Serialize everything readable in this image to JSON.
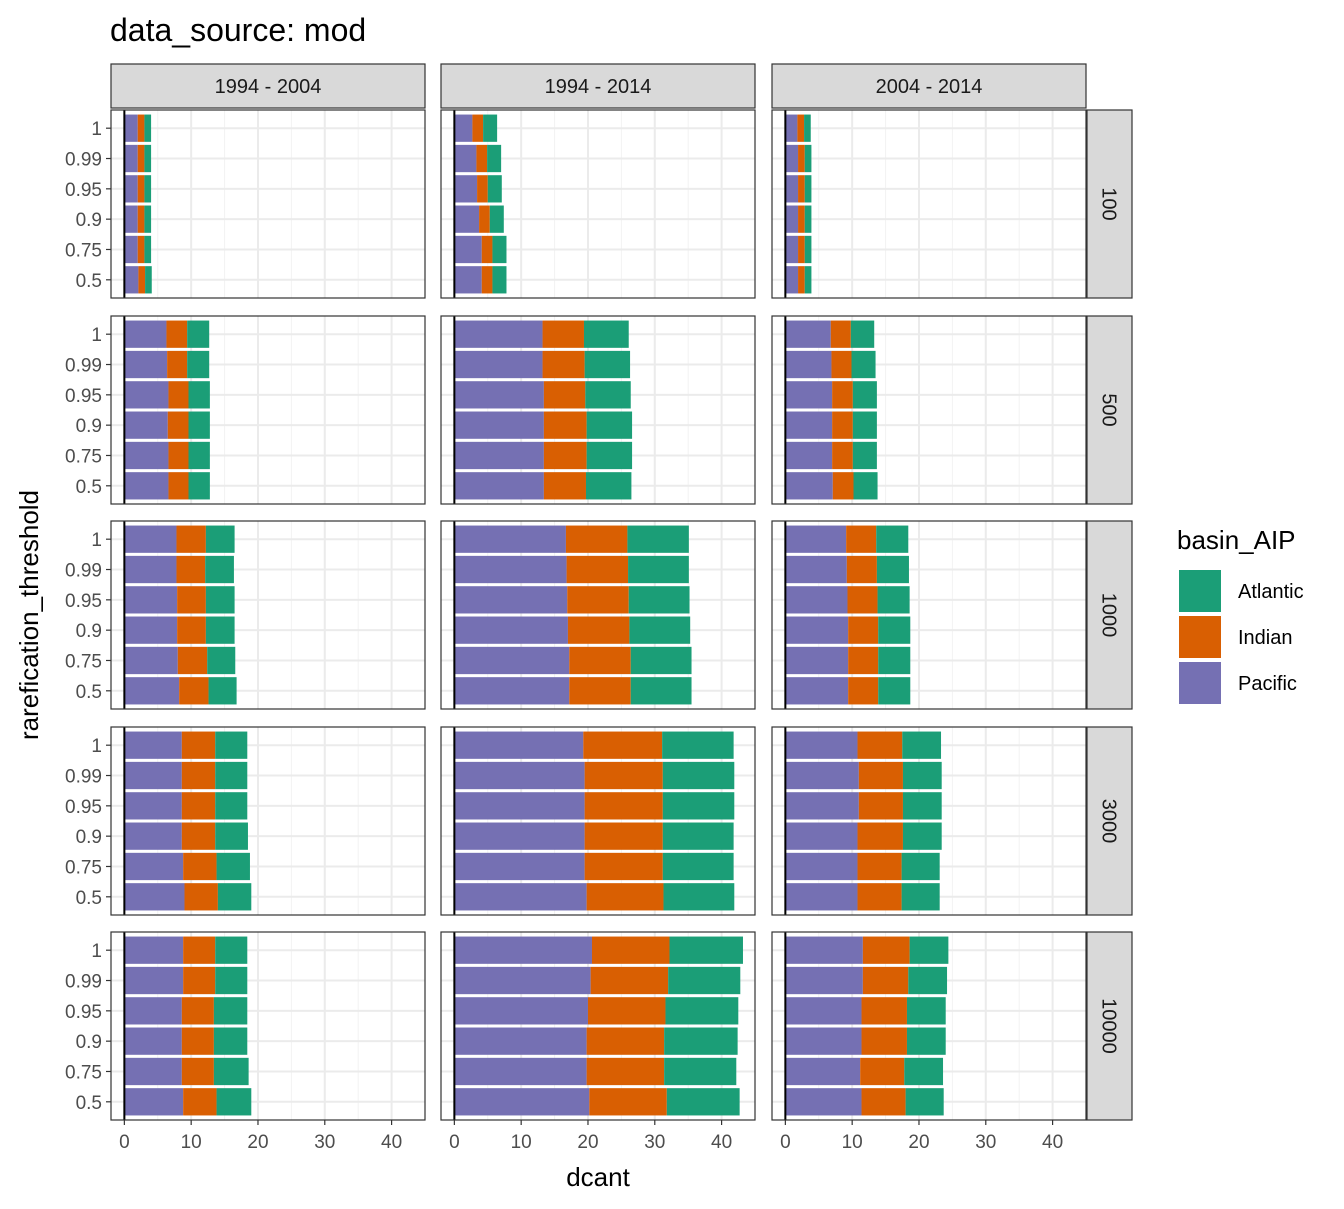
{
  "chart_data": {
    "type": "bar",
    "orientation": "horizontal",
    "stacked": true,
    "title": "data_source: mod",
    "xlabel": "dcant",
    "ylabel": "rarefication_threshold",
    "xlim": [
      -2,
      45
    ],
    "x_ticks": [
      "0",
      "10",
      "20",
      "30",
      "40"
    ],
    "categories": [
      "1",
      "0.99",
      "0.95",
      "0.9",
      "0.75",
      "0.5"
    ],
    "facet_columns": [
      "1994 - 2004",
      "1994 - 2014",
      "2004 - 2014"
    ],
    "facet_rows": [
      "100",
      "500",
      "1000",
      "3000",
      "10000"
    ],
    "grid": true,
    "legend": {
      "title": "basin_AIP",
      "position": "right",
      "entries": [
        {
          "name": "Atlantic",
          "color": "#1B9E77"
        },
        {
          "name": "Indian",
          "color": "#D95F02"
        },
        {
          "name": "Pacific",
          "color": "#7570B3"
        }
      ]
    },
    "series_order": [
      "Pacific",
      "Indian",
      "Atlantic"
    ],
    "series_colors": {
      "Pacific": "#7570B3",
      "Indian": "#D95F02",
      "Atlantic": "#1B9E77"
    },
    "panels": [
      [
        {
          "Pacific": [
            2.0,
            2.0,
            2.0,
            2.0,
            2.0,
            2.1
          ],
          "Indian": [
            1.0,
            1.0,
            1.0,
            1.0,
            1.0,
            1.0
          ],
          "Atlantic": [
            1.0,
            1.0,
            1.0,
            1.0,
            1.0,
            1.0
          ]
        },
        {
          "Pacific": [
            2.7,
            3.3,
            3.4,
            3.7,
            4.1,
            4.1
          ],
          "Indian": [
            1.6,
            1.6,
            1.6,
            1.6,
            1.6,
            1.6
          ],
          "Atlantic": [
            2.1,
            2.1,
            2.1,
            2.1,
            2.1,
            2.1
          ]
        },
        {
          "Pacific": [
            1.8,
            1.9,
            1.9,
            1.9,
            1.9,
            1.9
          ],
          "Indian": [
            1.0,
            1.0,
            1.0,
            1.0,
            1.0,
            1.0
          ],
          "Atlantic": [
            1.0,
            1.0,
            1.0,
            1.0,
            1.0,
            1.0
          ]
        }
      ],
      [
        {
          "Pacific": [
            6.3,
            6.4,
            6.6,
            6.5,
            6.6,
            6.6
          ],
          "Indian": [
            3.1,
            3.0,
            3.0,
            3.1,
            3.0,
            3.0
          ],
          "Atlantic": [
            3.3,
            3.3,
            3.2,
            3.2,
            3.2,
            3.2
          ]
        },
        {
          "Pacific": [
            13.2,
            13.2,
            13.4,
            13.4,
            13.4,
            13.4
          ],
          "Indian": [
            6.2,
            6.3,
            6.2,
            6.4,
            6.4,
            6.3
          ],
          "Atlantic": [
            6.7,
            6.8,
            6.8,
            6.8,
            6.8,
            6.8
          ]
        },
        {
          "Pacific": [
            6.8,
            6.9,
            7.0,
            7.0,
            7.0,
            7.1
          ],
          "Indian": [
            3.0,
            3.0,
            3.1,
            3.1,
            3.1,
            3.1
          ],
          "Atlantic": [
            3.5,
            3.6,
            3.6,
            3.6,
            3.6,
            3.6
          ]
        }
      ],
      [
        {
          "Pacific": [
            7.8,
            7.8,
            7.9,
            7.9,
            8.0,
            8.2
          ],
          "Indian": [
            4.4,
            4.3,
            4.3,
            4.3,
            4.4,
            4.4
          ],
          "Atlantic": [
            4.3,
            4.3,
            4.3,
            4.3,
            4.2,
            4.2
          ]
        },
        {
          "Pacific": [
            16.7,
            16.8,
            16.9,
            17.0,
            17.2,
            17.2
          ],
          "Indian": [
            9.2,
            9.2,
            9.2,
            9.2,
            9.2,
            9.2
          ],
          "Atlantic": [
            9.2,
            9.1,
            9.1,
            9.1,
            9.1,
            9.1
          ]
        },
        {
          "Pacific": [
            9.1,
            9.2,
            9.3,
            9.4,
            9.4,
            9.4
          ],
          "Indian": [
            4.5,
            4.5,
            4.5,
            4.5,
            4.5,
            4.5
          ],
          "Atlantic": [
            4.8,
            4.8,
            4.8,
            4.8,
            4.8,
            4.8
          ]
        }
      ],
      [
        {
          "Pacific": [
            8.6,
            8.6,
            8.6,
            8.6,
            8.8,
            9.0
          ],
          "Indian": [
            5.0,
            5.0,
            5.0,
            5.0,
            5.0,
            5.0
          ],
          "Atlantic": [
            4.8,
            4.8,
            4.8,
            4.9,
            5.0,
            5.0
          ]
        },
        {
          "Pacific": [
            19.3,
            19.5,
            19.5,
            19.5,
            19.5,
            19.8
          ],
          "Indian": [
            11.8,
            11.7,
            11.7,
            11.7,
            11.7,
            11.5
          ],
          "Atlantic": [
            10.7,
            10.7,
            10.7,
            10.6,
            10.6,
            10.6
          ]
        },
        {
          "Pacific": [
            10.8,
            11.0,
            11.0,
            10.8,
            10.8,
            10.8
          ],
          "Indian": [
            6.7,
            6.6,
            6.6,
            6.8,
            6.6,
            6.6
          ],
          "Atlantic": [
            5.8,
            5.8,
            5.8,
            5.8,
            5.7,
            5.7
          ]
        }
      ],
      [
        {
          "Pacific": [
            8.8,
            8.8,
            8.6,
            8.6,
            8.6,
            8.8
          ],
          "Indian": [
            4.8,
            4.8,
            4.8,
            4.8,
            4.8,
            5.0
          ],
          "Atlantic": [
            4.8,
            4.8,
            5.0,
            5.0,
            5.2,
            5.2
          ]
        },
        {
          "Pacific": [
            20.6,
            20.4,
            20.0,
            19.8,
            19.8,
            20.2
          ],
          "Indian": [
            11.6,
            11.6,
            11.6,
            11.6,
            11.6,
            11.6
          ],
          "Atlantic": [
            11.0,
            10.8,
            10.9,
            11.0,
            10.8,
            10.9
          ]
        },
        {
          "Pacific": [
            11.6,
            11.6,
            11.4,
            11.4,
            11.2,
            11.4
          ],
          "Indian": [
            7.0,
            6.8,
            6.8,
            6.8,
            6.6,
            6.6
          ],
          "Atlantic": [
            5.8,
            5.8,
            5.8,
            5.8,
            5.8,
            5.7
          ]
        }
      ]
    ]
  }
}
